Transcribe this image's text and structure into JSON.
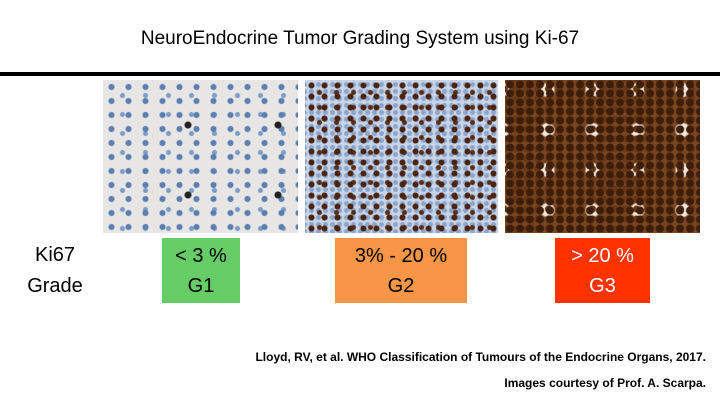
{
  "header": {
    "title": "NeuroEndocrine Tumor Grading System using Ki-67"
  },
  "row_label": {
    "line1": "Ki67",
    "line2": "Grade"
  },
  "grades": [
    {
      "range": "< 3 %",
      "grade": "G1"
    },
    {
      "range": "3% - 20 %",
      "grade": "G2"
    },
    {
      "range": "> 20 %",
      "grade": "G3"
    }
  ],
  "footer": {
    "citation": "Lloyd, RV, et al.  WHO Classification of Tumours of the Endocrine Organs, 2017.",
    "credit": "Images courtesy of Prof. A. Scarpa."
  }
}
